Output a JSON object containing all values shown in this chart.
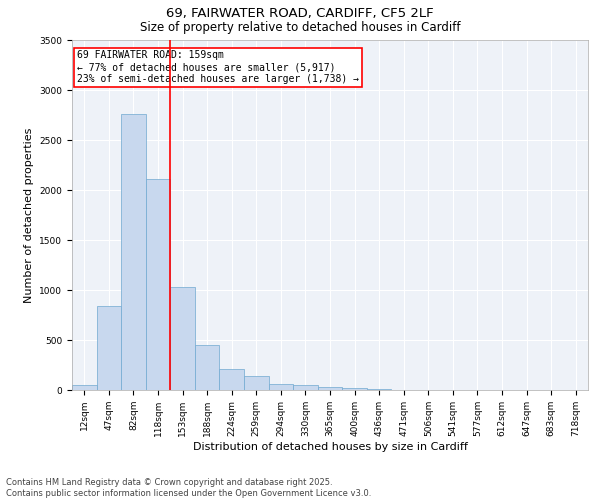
{
  "title1": "69, FAIRWATER ROAD, CARDIFF, CF5 2LF",
  "title2": "Size of property relative to detached houses in Cardiff",
  "xlabel": "Distribution of detached houses by size in Cardiff",
  "ylabel": "Number of detached properties",
  "bar_labels": [
    "12sqm",
    "47sqm",
    "82sqm",
    "118sqm",
    "153sqm",
    "188sqm",
    "224sqm",
    "259sqm",
    "294sqm",
    "330sqm",
    "365sqm",
    "400sqm",
    "436sqm",
    "471sqm",
    "506sqm",
    "541sqm",
    "577sqm",
    "612sqm",
    "647sqm",
    "683sqm",
    "718sqm"
  ],
  "bar_values": [
    55,
    840,
    2760,
    2110,
    1030,
    450,
    215,
    145,
    60,
    50,
    30,
    20,
    10,
    5,
    0,
    0,
    0,
    0,
    0,
    0,
    0
  ],
  "bar_color": "#c8d8ee",
  "bar_edgecolor": "#6fa8d0",
  "vline_x_idx": 3.5,
  "vline_color": "red",
  "annotation_title": "69 FAIRWATER ROAD: 159sqm",
  "annotation_line1": "← 77% of detached houses are smaller (5,917)",
  "annotation_line2": "23% of semi-detached houses are larger (1,738) →",
  "annotation_box_color": "red",
  "ylim": [
    0,
    3500
  ],
  "yticks": [
    0,
    500,
    1000,
    1500,
    2000,
    2500,
    3000,
    3500
  ],
  "bg_color": "#eef2f8",
  "footer1": "Contains HM Land Registry data © Crown copyright and database right 2025.",
  "footer2": "Contains public sector information licensed under the Open Government Licence v3.0.",
  "title_fontsize": 9.5,
  "subtitle_fontsize": 8.5,
  "axis_label_fontsize": 8,
  "tick_fontsize": 6.5,
  "annotation_fontsize": 7,
  "footer_fontsize": 6
}
